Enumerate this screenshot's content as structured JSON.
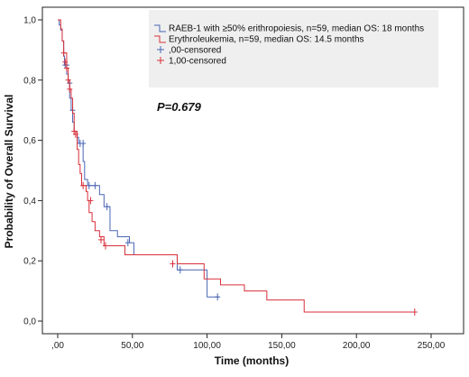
{
  "chart_data": {
    "type": "line",
    "title": "",
    "xlabel": "Time (months)",
    "ylabel": "Probability of Overall Survival",
    "xlim": [
      0,
      250
    ],
    "ylim": [
      0,
      1.0
    ],
    "x_ticks": [
      0,
      50,
      100,
      150,
      200,
      250
    ],
    "x_tick_labels": [
      ",00",
      "50,00",
      "100,00",
      "150,00",
      "200,00",
      "250,00"
    ],
    "y_ticks": [
      0,
      0.2,
      0.4,
      0.6,
      0.8,
      1.0
    ],
    "y_tick_labels": [
      "0,0",
      "0,2",
      "0,4",
      "0,6",
      "0,8",
      "1,0"
    ],
    "grid": false,
    "legend_position": "top-right",
    "annotation": "P=0.679",
    "legend": [
      {
        "label": "RAEB-1 with ≥50% erithropoiesis, n=59, median OS: 18 months",
        "symbol": "step",
        "color": "#4a66b5"
      },
      {
        "label": "Erythroleukemia, n=59, median OS: 14.5 months",
        "symbol": "step",
        "color": "#d8303a"
      },
      {
        "label": ",00-censored",
        "symbol": "plus",
        "color": "#4a66b5"
      },
      {
        "label": "1,00-censored",
        "symbol": "plus",
        "color": "#d8303a"
      }
    ],
    "series": [
      {
        "name": "RAEB-1 with ≥50% erithropoiesis, n=59, median OS: 18 months",
        "color": "#4a66b5",
        "steps": [
          [
            0,
            1.0
          ],
          [
            1,
            0.983
          ],
          [
            2,
            0.966
          ],
          [
            3,
            0.93
          ],
          [
            4,
            0.88
          ],
          [
            4.5,
            0.85
          ],
          [
            6,
            0.82
          ],
          [
            7,
            0.79
          ],
          [
            8,
            0.74
          ],
          [
            9,
            0.7
          ],
          [
            10,
            0.66
          ],
          [
            11,
            0.63
          ],
          [
            13,
            0.61
          ],
          [
            14,
            0.59
          ],
          [
            17,
            0.53
          ],
          [
            18,
            0.47
          ],
          [
            20,
            0.45
          ],
          [
            28,
            0.42
          ],
          [
            31,
            0.38
          ],
          [
            35,
            0.3
          ],
          [
            40,
            0.28
          ],
          [
            48,
            0.26
          ],
          [
            51,
            0.22
          ],
          [
            80,
            0.17
          ],
          [
            100,
            0.08
          ],
          [
            108,
            0.08
          ]
        ],
        "censored": [
          [
            5,
            0.85
          ],
          [
            6,
            0.85
          ],
          [
            8,
            0.79
          ],
          [
            10,
            0.7
          ],
          [
            15,
            0.59
          ],
          [
            17,
            0.59
          ],
          [
            21,
            0.45
          ],
          [
            25,
            0.45
          ],
          [
            33,
            0.38
          ],
          [
            47,
            0.26
          ],
          [
            82,
            0.17
          ],
          [
            107,
            0.08
          ]
        ]
      },
      {
        "name": "Erythroleukemia, n=59, median OS: 14.5 months",
        "color": "#d8303a",
        "steps": [
          [
            0,
            1.0
          ],
          [
            2,
            0.97
          ],
          [
            3,
            0.93
          ],
          [
            4,
            0.89
          ],
          [
            6,
            0.84
          ],
          [
            7,
            0.8
          ],
          [
            8,
            0.77
          ],
          [
            9,
            0.74
          ],
          [
            10,
            0.69
          ],
          [
            11,
            0.63
          ],
          [
            13,
            0.57
          ],
          [
            14,
            0.52
          ],
          [
            15,
            0.49
          ],
          [
            16,
            0.45
          ],
          [
            19,
            0.43
          ],
          [
            20,
            0.4
          ],
          [
            21,
            0.36
          ],
          [
            23,
            0.33
          ],
          [
            25,
            0.3
          ],
          [
            28,
            0.28
          ],
          [
            31,
            0.25
          ],
          [
            45,
            0.22
          ],
          [
            80,
            0.19
          ],
          [
            98,
            0.14
          ],
          [
            109,
            0.12
          ],
          [
            125,
            0.1
          ],
          [
            140,
            0.07
          ],
          [
            165,
            0.03
          ],
          [
            240,
            0.03
          ]
        ],
        "censored": [
          [
            4,
            0.89
          ],
          [
            5,
            0.86
          ],
          [
            6,
            0.84
          ],
          [
            7,
            0.8
          ],
          [
            8,
            0.77
          ],
          [
            11,
            0.63
          ],
          [
            12,
            0.62
          ],
          [
            17,
            0.45
          ],
          [
            22,
            0.4
          ],
          [
            29,
            0.27
          ],
          [
            32,
            0.25
          ],
          [
            77,
            0.19
          ],
          [
            239,
            0.03
          ]
        ]
      }
    ]
  }
}
